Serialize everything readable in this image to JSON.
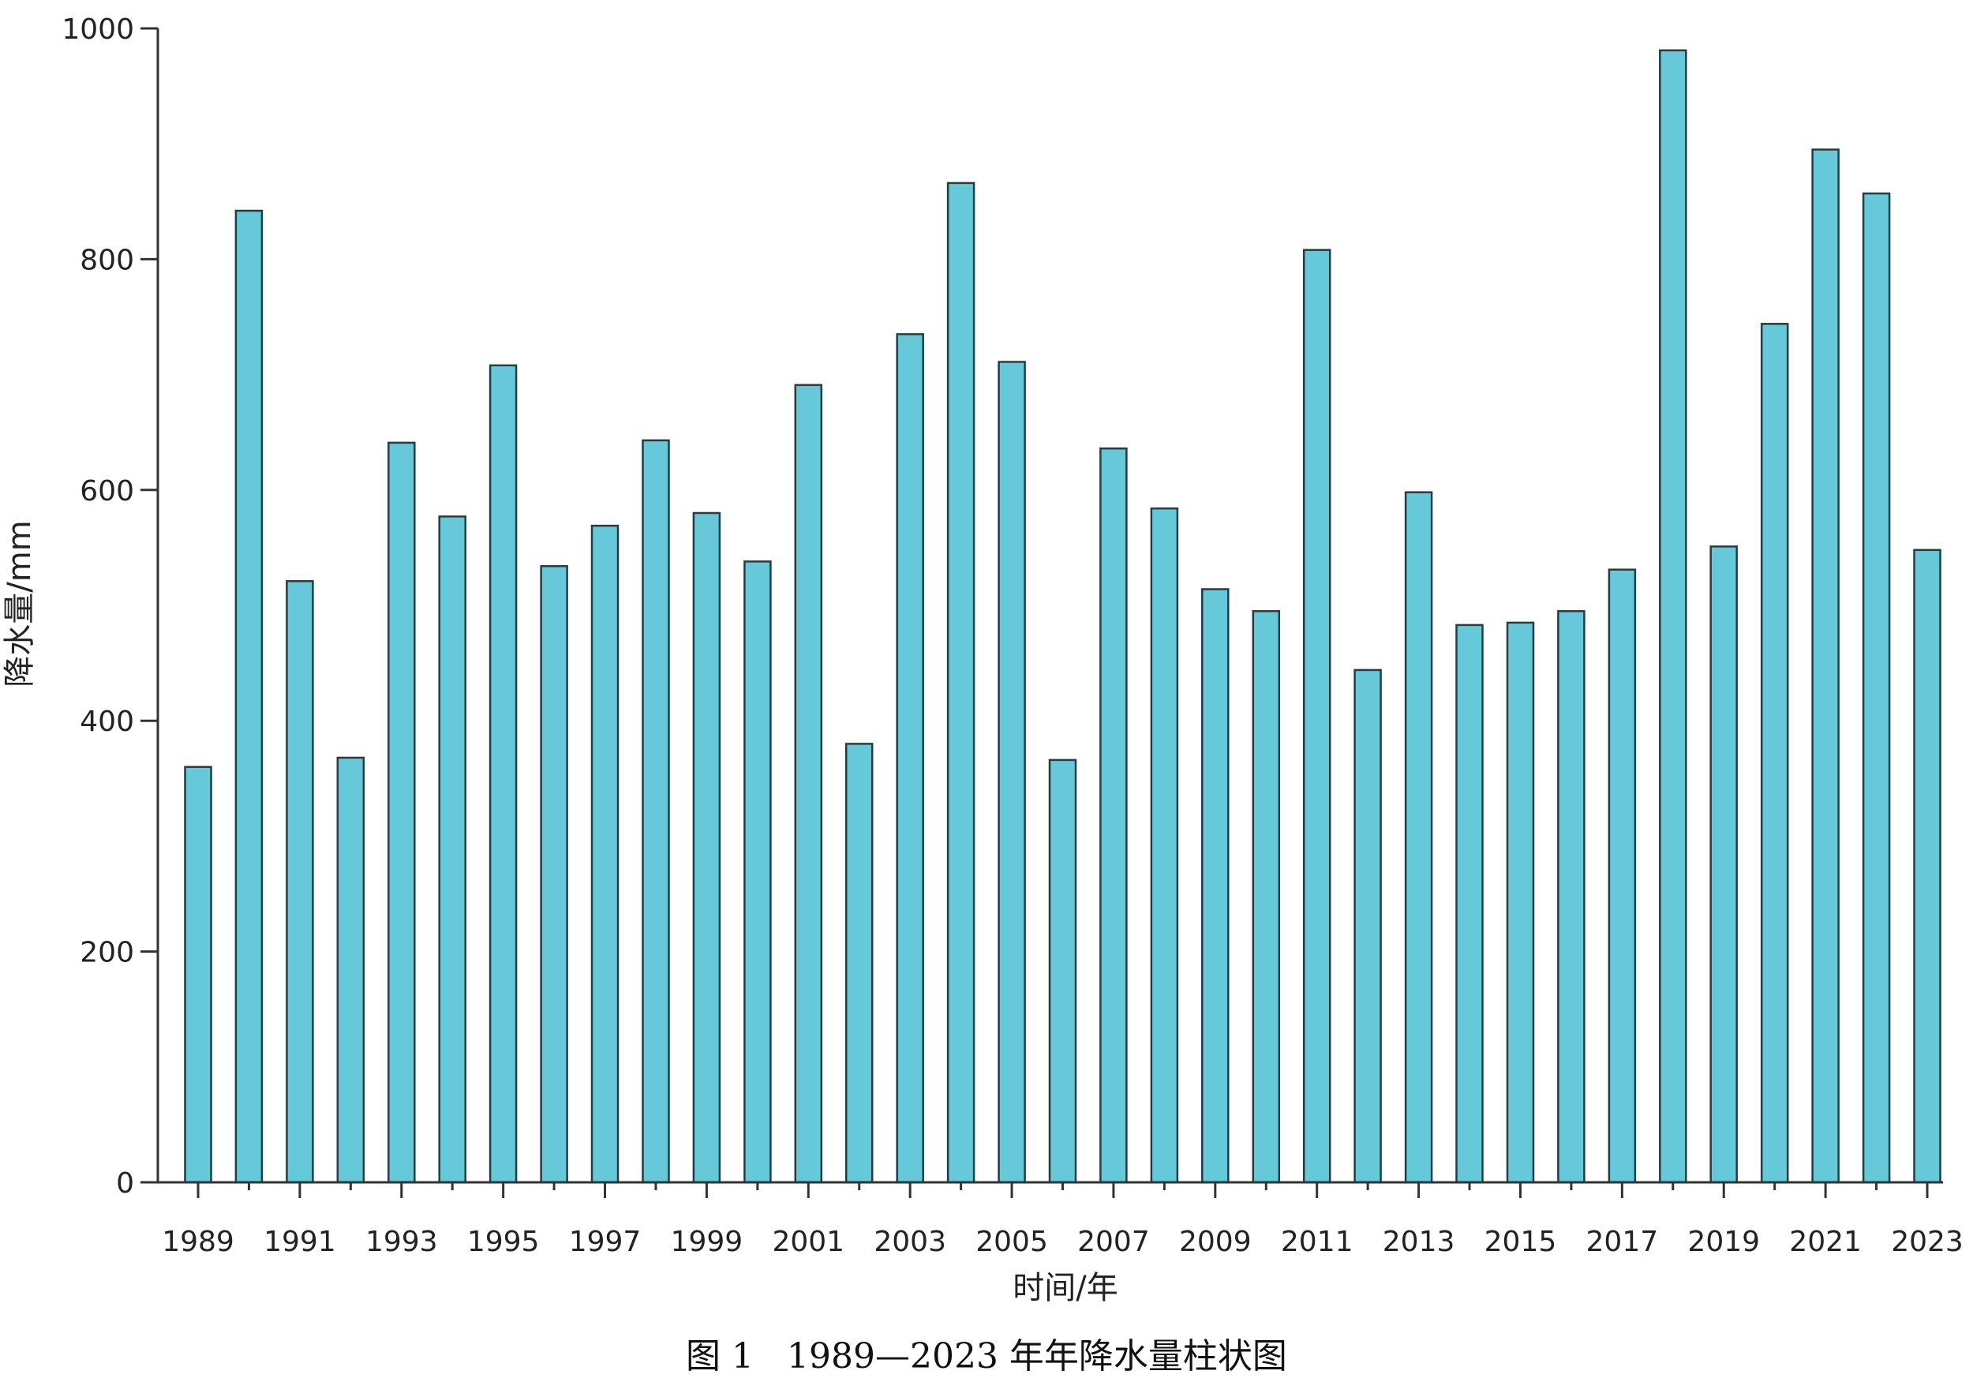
{
  "chart_data": {
    "type": "bar",
    "caption": "图 1   1989—2023 年年降水量柱状图",
    "xlabel": "时间/年",
    "ylabel": "降水量/mm",
    "ylim": [
      0,
      1000
    ],
    "yticks": [
      0,
      200,
      400,
      600,
      800,
      1000
    ],
    "x_tick_labels": [
      "1989",
      "1991",
      "1993",
      "1995",
      "1997",
      "1999",
      "2001",
      "2003",
      "2005",
      "2007",
      "2009",
      "2011",
      "2013",
      "2015",
      "2017",
      "2019",
      "2021",
      "2023"
    ],
    "categories": [
      "1989",
      "1990",
      "1991",
      "1992",
      "1993",
      "1994",
      "1995",
      "1996",
      "1997",
      "1998",
      "1999",
      "2000",
      "2001",
      "2002",
      "2003",
      "2004",
      "2005",
      "2006",
      "2007",
      "2008",
      "2009",
      "2010",
      "2011",
      "2012",
      "2013",
      "2014",
      "2015",
      "2016",
      "2017",
      "2018",
      "2019",
      "2020",
      "2021",
      "2022",
      "2023"
    ],
    "values": [
      360,
      842,
      521,
      368,
      641,
      577,
      708,
      534,
      569,
      643,
      580,
      538,
      691,
      380,
      735,
      866,
      711,
      366,
      636,
      584,
      514,
      495,
      808,
      444,
      598,
      483,
      485,
      495,
      531,
      981,
      551,
      744,
      895,
      857,
      548
    ],
    "bar_color": "#66c9da",
    "bar_edge_color": "#1f3f45",
    "grid": false,
    "legend": "none"
  }
}
